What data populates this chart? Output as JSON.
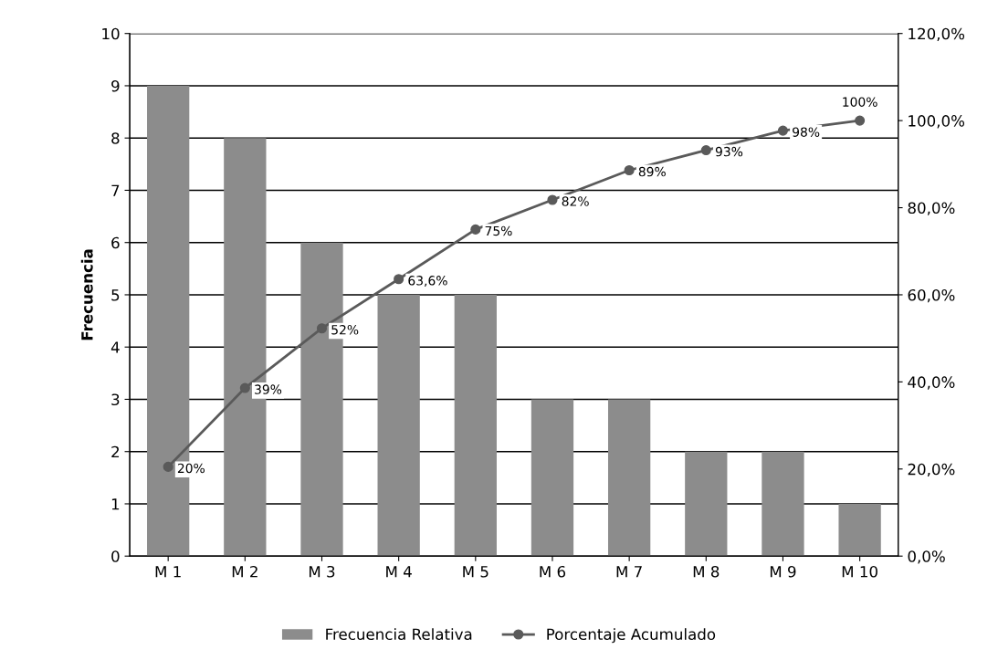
{
  "chart_data": {
    "type": "bar",
    "ylabel": "Frecuencia",
    "categories": [
      "M 1",
      "M 2",
      "M 3",
      "M 4",
      "M 5",
      "M 6",
      "M 7",
      "M 8",
      "M 9",
      "M 10"
    ],
    "series": [
      {
        "name": "Frecuencia Relativa",
        "color": "#8c8c8c",
        "values": [
          9,
          8,
          6,
          5,
          5,
          3,
          3,
          2,
          2,
          1
        ]
      },
      {
        "name": "Porcentaje Acumulado",
        "type": "line",
        "axis": "y2",
        "color": "#5a5a5a",
        "marker": "circle",
        "values": [
          20.5,
          38.6,
          52.3,
          63.6,
          75,
          81.8,
          88.6,
          93.2,
          97.7,
          100
        ],
        "value_labels": [
          "20%",
          "39%",
          "52%",
          "63,6%",
          "75%",
          "82%",
          "89%",
          "93%",
          "98%",
          "100%"
        ]
      }
    ],
    "ylim": [
      0,
      10
    ],
    "yticks": [
      0,
      1,
      2,
      3,
      4,
      5,
      6,
      7,
      8,
      9,
      10
    ],
    "y2lim": [
      0,
      120
    ],
    "y2ticks": [
      {
        "value": 0,
        "label": "0,0%"
      },
      {
        "value": 20,
        "label": "20,0%"
      },
      {
        "value": 40,
        "label": "40,0%"
      },
      {
        "value": 60,
        "label": "60,0%"
      },
      {
        "value": 80,
        "label": "80,0%"
      },
      {
        "value": 100,
        "label": "100,0%"
      },
      {
        "value": 120,
        "label": "120,0%"
      }
    ],
    "grid": "y",
    "legend": "bottom"
  }
}
